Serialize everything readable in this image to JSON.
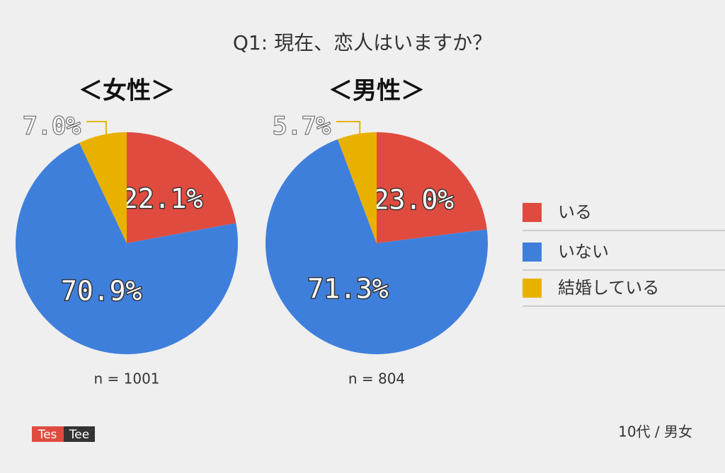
{
  "title": "Q1: 現在、恋人はいますか？",
  "source": "10代 / 男女",
  "logo": {
    "left": "Tes",
    "right": "Tee"
  },
  "chart_data": [
    {
      "type": "pie",
      "subtitle": "＜女性＞",
      "annotation": "n = 1001",
      "categories": [
        "いる",
        "いない",
        "結婚している"
      ],
      "values": [
        22.1,
        70.9,
        7.0
      ],
      "value_labels": [
        "22.1%",
        "70.9%",
        "7.0%"
      ],
      "colors": [
        "#e04b3f",
        "#3f7fdc",
        "#e8b100"
      ]
    },
    {
      "type": "pie",
      "subtitle": "＜男性＞",
      "annotation": "n = 804",
      "categories": [
        "いる",
        "いない",
        "結婚している"
      ],
      "values": [
        23.0,
        71.3,
        5.7
      ],
      "value_labels": [
        "23.0%",
        "71.3%",
        "5.7%"
      ],
      "colors": [
        "#e04b3f",
        "#3f7fdc",
        "#e8b100"
      ]
    }
  ]
}
